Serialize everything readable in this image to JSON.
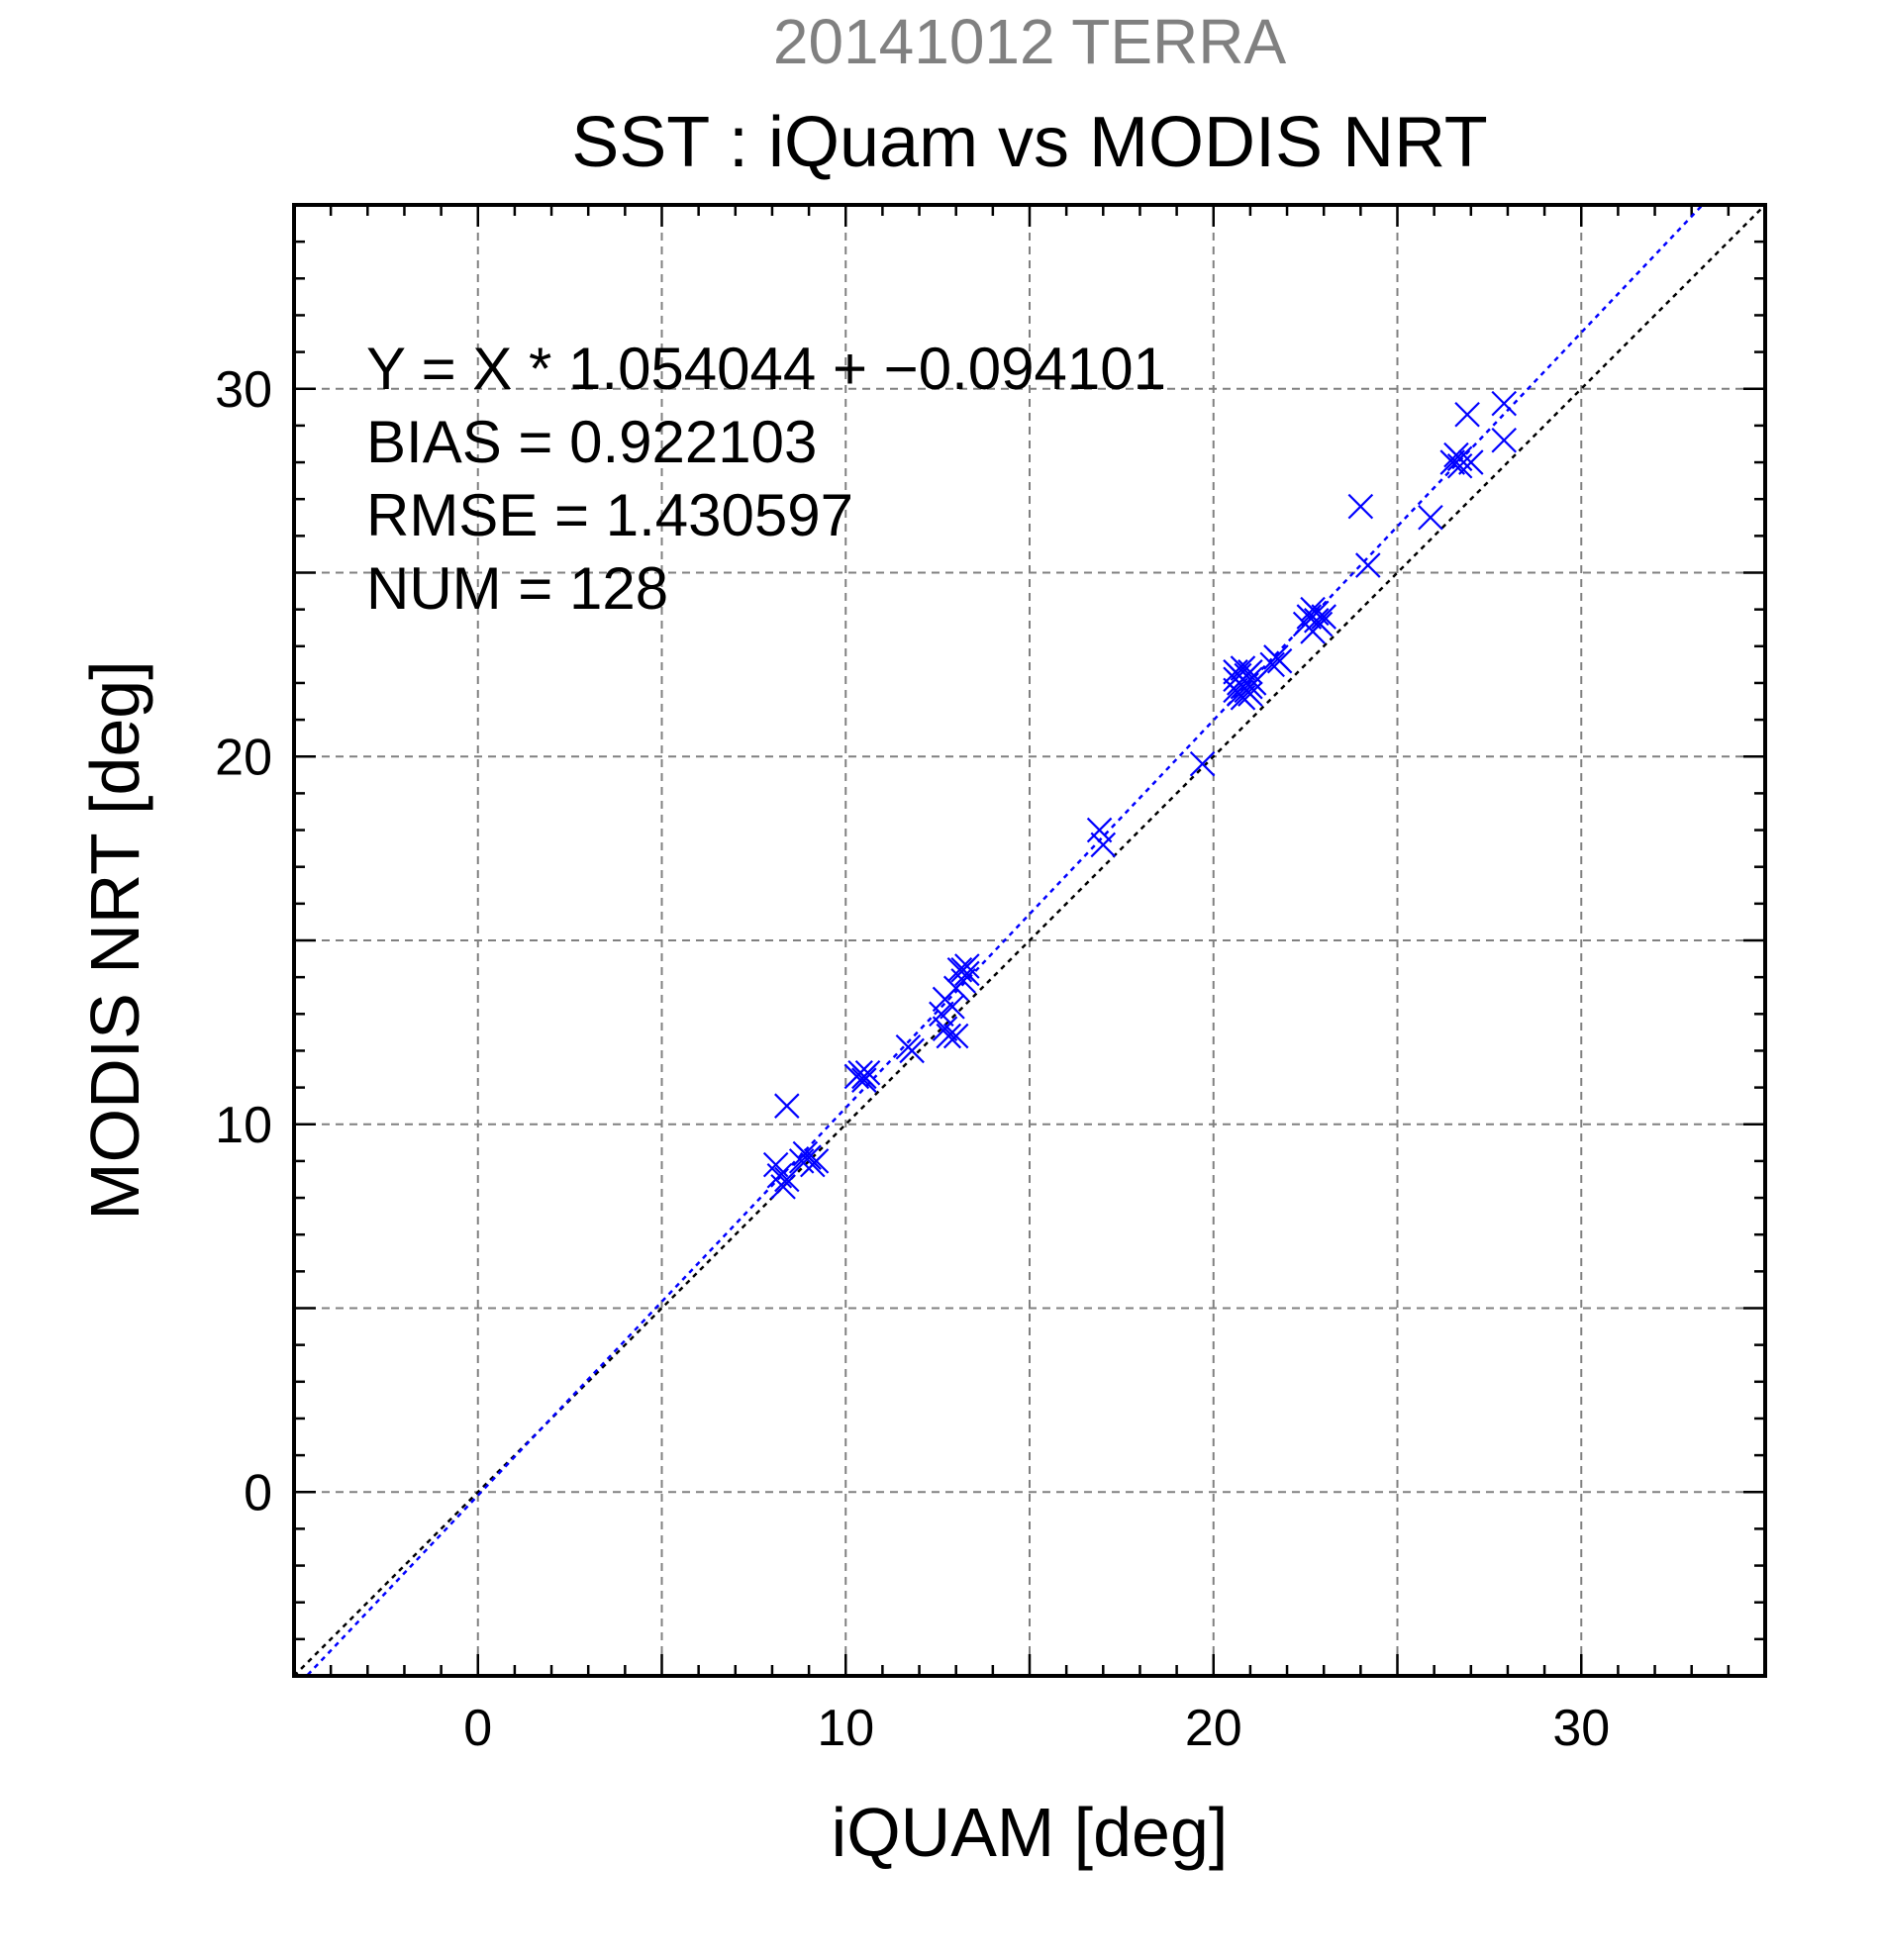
{
  "colors": {
    "supertitle": "#808080",
    "series": "#0000ff",
    "identity_line": "#000000",
    "grid": "#808080",
    "frame": "#000000"
  },
  "chart_data": {
    "type": "scatter",
    "supertitle": "20141012 TERRA",
    "title": "SST : iQuam vs MODIS NRT",
    "xlabel": "iQUAM [deg]",
    "ylabel": "MODIS NRT [deg]",
    "xlim": [
      -5,
      35
    ],
    "ylim": [
      -5,
      35
    ],
    "xticks": [
      0,
      10,
      20,
      30
    ],
    "yticks": [
      0,
      10,
      20,
      30
    ],
    "x_tick_labels": [
      "0",
      "10",
      "20",
      "30"
    ],
    "y_tick_labels": [
      "0",
      "10",
      "20",
      "30"
    ],
    "grid": true,
    "marker": "x",
    "stats": {
      "equation": "Y = X * 1.054044 + −0.094101",
      "bias": "BIAS = 0.922103",
      "rmse": "RMSE = 1.430597",
      "num": "NUM = 128"
    },
    "fit_line": {
      "slope": 1.054044,
      "intercept": -0.094101
    },
    "identity_line": {
      "slope": 1,
      "intercept": 0
    },
    "points": [
      [
        8.1,
        8.9
      ],
      [
        8.2,
        8.6
      ],
      [
        8.3,
        8.3
      ],
      [
        8.4,
        8.5
      ],
      [
        8.4,
        10.5
      ],
      [
        8.8,
        9.0
      ],
      [
        8.9,
        9.2
      ],
      [
        9.0,
        9.1
      ],
      [
        9.1,
        8.9
      ],
      [
        9.2,
        9.0
      ],
      [
        10.3,
        11.3
      ],
      [
        10.4,
        11.4
      ],
      [
        10.5,
        11.3
      ],
      [
        10.6,
        11.4
      ],
      [
        10.5,
        11.2
      ],
      [
        11.7,
        12.1
      ],
      [
        11.8,
        12.0
      ],
      [
        12.6,
        13.0
      ],
      [
        12.7,
        12.6
      ],
      [
        12.7,
        13.4
      ],
      [
        12.8,
        12.4
      ],
      [
        12.9,
        13.2
      ],
      [
        13.0,
        12.4
      ],
      [
        13.0,
        13.7
      ],
      [
        13.1,
        14.2
      ],
      [
        13.2,
        13.9
      ],
      [
        13.2,
        14.2
      ],
      [
        13.3,
        14.1
      ],
      [
        13.3,
        14.3
      ],
      [
        16.9,
        18.0
      ],
      [
        17.0,
        17.6
      ],
      [
        19.7,
        19.8
      ],
      [
        20.6,
        21.8
      ],
      [
        20.6,
        22.1
      ],
      [
        20.6,
        22.3
      ],
      [
        20.7,
        21.7
      ],
      [
        20.7,
        22.0
      ],
      [
        20.7,
        22.2
      ],
      [
        20.8,
        21.6
      ],
      [
        20.8,
        21.9
      ],
      [
        20.8,
        22.1
      ],
      [
        20.8,
        22.4
      ],
      [
        20.9,
        21.8
      ],
      [
        20.9,
        22.0
      ],
      [
        20.9,
        22.2
      ],
      [
        21.0,
        21.7
      ],
      [
        21.0,
        21.9
      ],
      [
        21.0,
        22.1
      ],
      [
        21.0,
        22.3
      ],
      [
        21.1,
        22.0
      ],
      [
        21.6,
        22.5
      ],
      [
        21.7,
        22.7
      ],
      [
        21.8,
        22.6
      ],
      [
        22.5,
        23.6
      ],
      [
        22.6,
        23.8
      ],
      [
        22.7,
        23.4
      ],
      [
        22.7,
        24.0
      ],
      [
        22.8,
        23.7
      ],
      [
        22.8,
        23.9
      ],
      [
        22.9,
        23.6
      ],
      [
        23.0,
        23.8
      ],
      [
        24.0,
        26.8
      ],
      [
        24.2,
        25.2
      ],
      [
        25.9,
        26.5
      ],
      [
        26.5,
        28.0
      ],
      [
        26.6,
        28.2
      ],
      [
        26.7,
        28.1
      ],
      [
        26.7,
        27.9
      ],
      [
        27.0,
        28.0
      ],
      [
        26.9,
        29.3
      ],
      [
        27.9,
        29.6
      ],
      [
        27.9,
        28.6
      ]
    ]
  }
}
